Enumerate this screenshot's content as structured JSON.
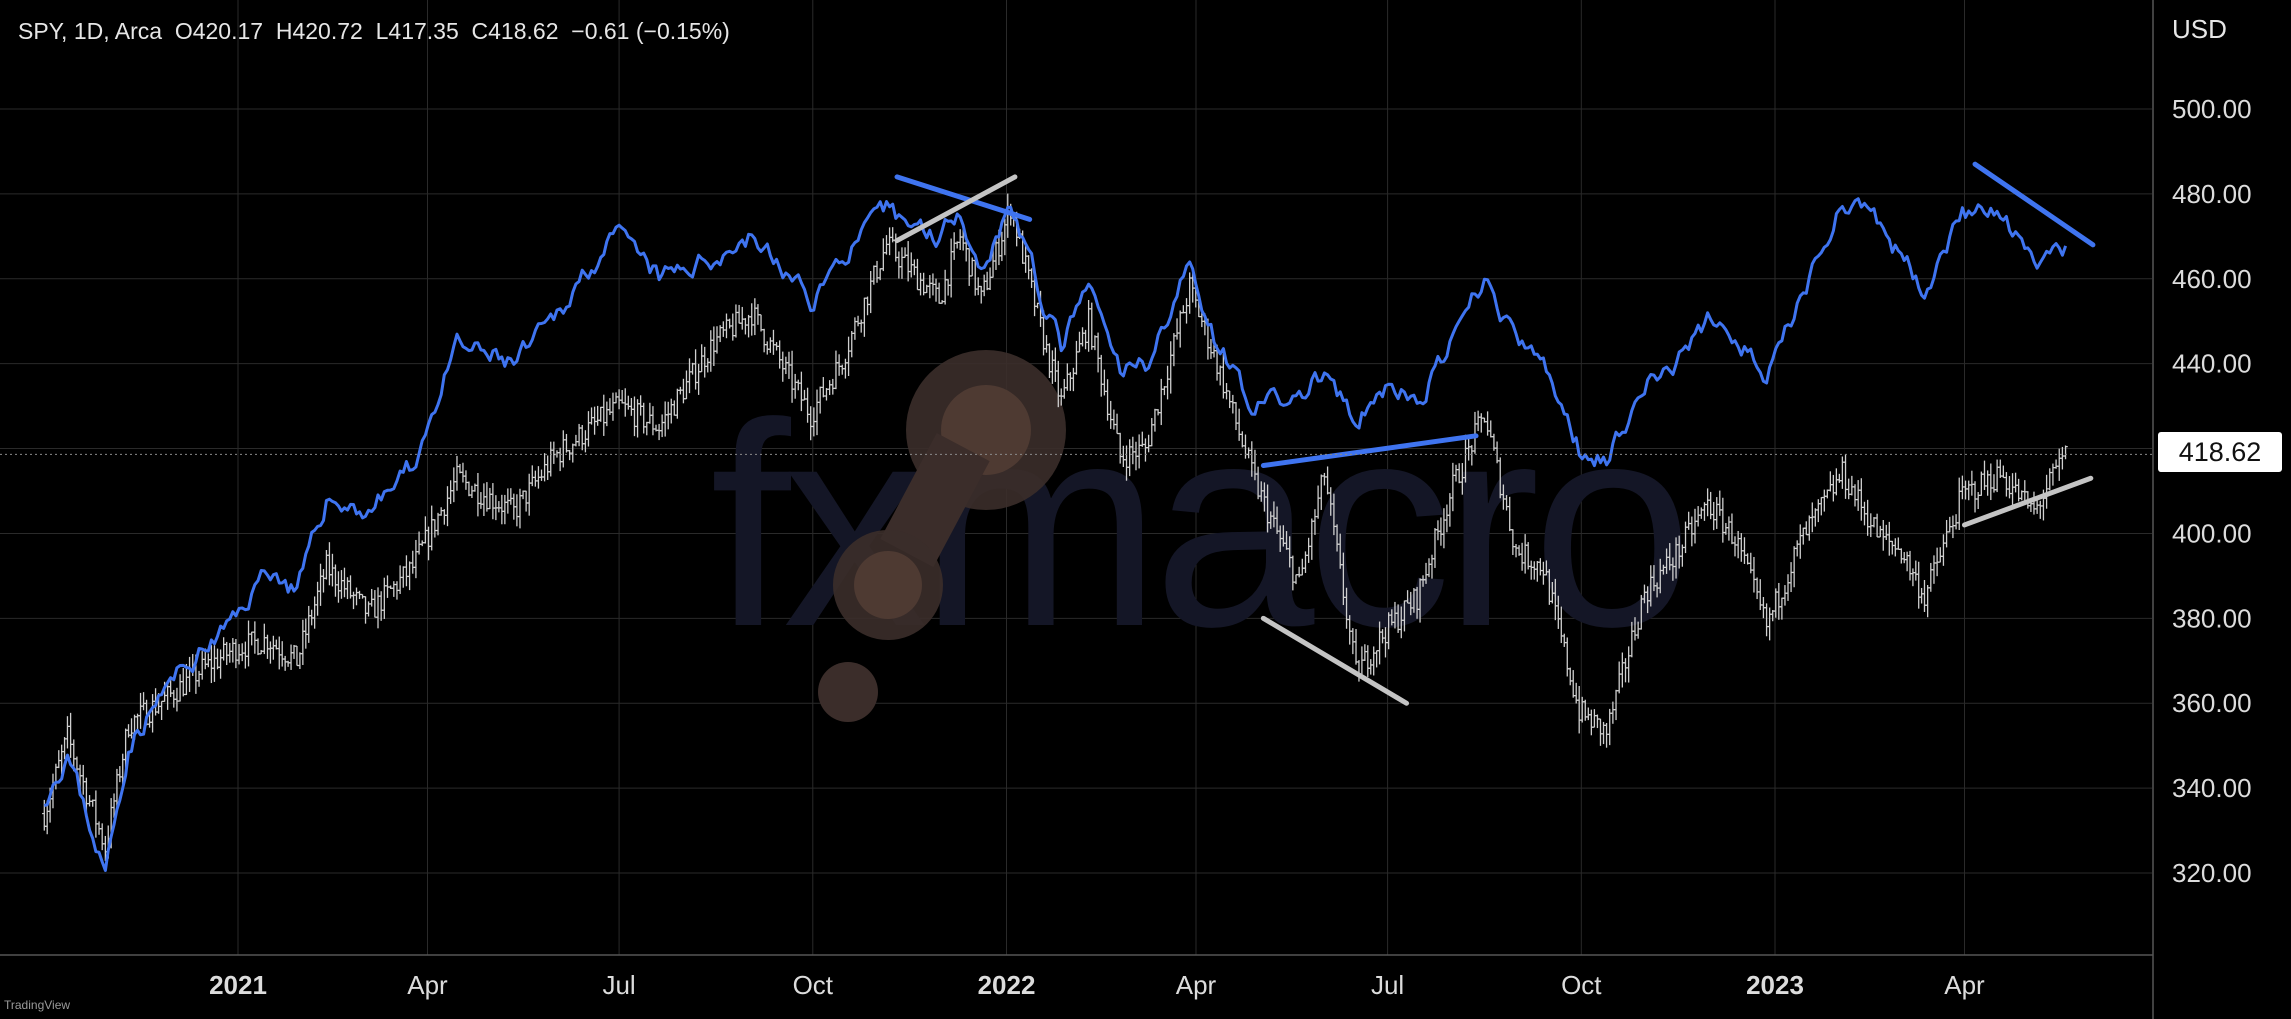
{
  "legend": {
    "symbol": "SPY, 1D, Arca",
    "open": "O420.17",
    "high": "H420.72",
    "low": "L417.35",
    "close": "C418.62",
    "change": "−0.61 (−0.15%)"
  },
  "currency": "USD",
  "last_price_label": "418.62",
  "attribution": "TradingView",
  "watermark": "fxmacro",
  "colors": {
    "background": "#000000",
    "grid": "#2a2a2a",
    "price_bars": "#cfcfcf",
    "comparison_line": "#3f74f0",
    "trendline_blue": "#3f74f0",
    "trendline_gray": "#c4c4c4",
    "watermark_text": "#141626",
    "watermark_logo": "#4a3a34"
  },
  "chart_data": {
    "type": "line",
    "y_axis": {
      "range": [
        300,
        525
      ],
      "ticks": [
        "320.00",
        "340.00",
        "360.00",
        "380.00",
        "400.00",
        "420.00",
        "440.00",
        "460.00",
        "480.00",
        "500.00"
      ]
    },
    "x_axis": {
      "range": [
        "2020-10-01",
        "2023-05-31"
      ],
      "ticks": [
        {
          "label": "2021",
          "date": "2021-01-01",
          "year": true
        },
        {
          "label": "Apr",
          "date": "2021-04-01",
          "year": false
        },
        {
          "label": "Jul",
          "date": "2021-07-01",
          "year": false
        },
        {
          "label": "Oct",
          "date": "2021-10-01",
          "year": false
        },
        {
          "label": "2022",
          "date": "2022-01-01",
          "year": true
        },
        {
          "label": "Apr",
          "date": "2022-04-01",
          "year": false
        },
        {
          "label": "Jul",
          "date": "2022-07-01",
          "year": false
        },
        {
          "label": "Oct",
          "date": "2022-10-01",
          "year": false
        },
        {
          "label": "2023",
          "date": "2023-01-01",
          "year": true
        },
        {
          "label": "Apr",
          "date": "2023-04-01",
          "year": false
        }
      ]
    },
    "grid": true,
    "last_price": 418.62,
    "series": [
      {
        "style": "ohlc-bars",
        "color": "#cfcfcf",
        "points": [
          [
            "2020-10-01",
            334
          ],
          [
            "2020-10-12",
            352
          ],
          [
            "2020-10-30",
            326
          ],
          [
            "2020-11-10",
            355
          ],
          [
            "2020-11-30",
            362
          ],
          [
            "2020-12-15",
            368
          ],
          [
            "2020-12-31",
            373
          ],
          [
            "2021-01-15",
            375
          ],
          [
            "2021-01-29",
            370
          ],
          [
            "2021-02-12",
            392
          ],
          [
            "2021-03-04",
            381
          ],
          [
            "2021-03-25",
            392
          ],
          [
            "2021-04-15",
            413
          ],
          [
            "2021-05-12",
            405
          ],
          [
            "2021-05-31",
            418
          ],
          [
            "2021-06-15",
            424
          ],
          [
            "2021-07-01",
            430
          ],
          [
            "2021-07-20",
            425
          ],
          [
            "2021-08-15",
            445
          ],
          [
            "2021-09-02",
            452
          ],
          [
            "2021-09-30",
            428
          ],
          [
            "2021-10-15",
            441
          ],
          [
            "2021-11-05",
            468
          ],
          [
            "2021-11-30",
            455
          ],
          [
            "2021-12-10",
            470
          ],
          [
            "2021-12-20",
            455
          ],
          [
            "2022-01-03",
            477
          ],
          [
            "2022-01-20",
            443
          ],
          [
            "2022-01-27",
            431
          ],
          [
            "2022-02-09",
            450
          ],
          [
            "2022-02-24",
            418
          ],
          [
            "2022-03-08",
            420
          ],
          [
            "2022-03-29",
            458
          ],
          [
            "2022-04-11",
            440
          ],
          [
            "2022-04-29",
            412
          ],
          [
            "2022-05-20",
            388
          ],
          [
            "2022-06-01",
            414
          ],
          [
            "2022-06-16",
            367
          ],
          [
            "2022-06-30",
            377
          ],
          [
            "2022-07-15",
            385
          ],
          [
            "2022-08-01",
            411
          ],
          [
            "2022-08-16",
            428
          ],
          [
            "2022-08-31",
            396
          ],
          [
            "2022-09-13",
            392
          ],
          [
            "2022-09-30",
            358
          ],
          [
            "2022-10-13",
            353
          ],
          [
            "2022-10-31",
            386
          ],
          [
            "2022-11-15",
            395
          ],
          [
            "2022-11-30",
            407
          ],
          [
            "2022-12-13",
            399
          ],
          [
            "2022-12-28",
            378
          ],
          [
            "2023-01-13",
            398
          ],
          [
            "2023-02-02",
            414
          ],
          [
            "2023-02-20",
            399
          ],
          [
            "2023-03-02",
            396
          ],
          [
            "2023-03-13",
            385
          ],
          [
            "2023-03-31",
            409
          ],
          [
            "2023-04-18",
            414
          ],
          [
            "2023-05-04",
            405
          ],
          [
            "2023-05-19",
            418.62
          ]
        ]
      },
      {
        "style": "line",
        "color": "#3f74f0",
        "points": [
          [
            "2020-10-01",
            338
          ],
          [
            "2020-10-12",
            348
          ],
          [
            "2020-10-30",
            320
          ],
          [
            "2020-11-10",
            350
          ],
          [
            "2020-11-30",
            365
          ],
          [
            "2020-12-15",
            372
          ],
          [
            "2020-12-31",
            380
          ],
          [
            "2021-01-15",
            392
          ],
          [
            "2021-01-29",
            386
          ],
          [
            "2021-02-12",
            408
          ],
          [
            "2021-03-04",
            405
          ],
          [
            "2021-03-25",
            416
          ],
          [
            "2021-04-15",
            444
          ],
          [
            "2021-05-12",
            440
          ],
          [
            "2021-05-31",
            450
          ],
          [
            "2021-06-15",
            462
          ],
          [
            "2021-07-01",
            470
          ],
          [
            "2021-07-20",
            460
          ],
          [
            "2021-08-15",
            465
          ],
          [
            "2021-09-02",
            470
          ],
          [
            "2021-09-30",
            455
          ],
          [
            "2021-10-15",
            465
          ],
          [
            "2021-11-05",
            476
          ],
          [
            "2021-11-30",
            470
          ],
          [
            "2021-12-10",
            477
          ],
          [
            "2021-12-20",
            462
          ],
          [
            "2022-01-03",
            478
          ],
          [
            "2022-01-20",
            452
          ],
          [
            "2022-01-27",
            444
          ],
          [
            "2022-02-09",
            458
          ],
          [
            "2022-02-24",
            438
          ],
          [
            "2022-03-08",
            440
          ],
          [
            "2022-03-29",
            463
          ],
          [
            "2022-04-11",
            445
          ],
          [
            "2022-04-29",
            430
          ],
          [
            "2022-05-20",
            432
          ],
          [
            "2022-06-01",
            438
          ],
          [
            "2022-06-16",
            425
          ],
          [
            "2022-06-30",
            435
          ],
          [
            "2022-07-15",
            430
          ],
          [
            "2022-08-01",
            445
          ],
          [
            "2022-08-16",
            460
          ],
          [
            "2022-08-31",
            445
          ],
          [
            "2022-09-13",
            440
          ],
          [
            "2022-09-30",
            420
          ],
          [
            "2022-10-13",
            418
          ],
          [
            "2022-10-31",
            435
          ],
          [
            "2022-11-15",
            440
          ],
          [
            "2022-11-30",
            450
          ],
          [
            "2022-12-13",
            447
          ],
          [
            "2022-12-28",
            436
          ],
          [
            "2023-01-13",
            455
          ],
          [
            "2023-02-02",
            479
          ],
          [
            "2023-02-20",
            472
          ],
          [
            "2023-03-02",
            465
          ],
          [
            "2023-03-13",
            458
          ],
          [
            "2023-03-31",
            476
          ],
          [
            "2023-04-18",
            475
          ],
          [
            "2023-05-04",
            463
          ],
          [
            "2023-05-19",
            466
          ]
        ]
      }
    ],
    "trendlines": [
      {
        "color": "#3f74f0",
        "from": [
          "2021-11-10",
          484
        ],
        "to": [
          "2022-01-12",
          474
        ]
      },
      {
        "color": "#c4c4c4",
        "from": [
          "2021-11-10",
          469
        ],
        "to": [
          "2022-01-05",
          484
        ]
      },
      {
        "color": "#3f74f0",
        "from": [
          "2022-05-03",
          416
        ],
        "to": [
          "2022-08-12",
          423
        ]
      },
      {
        "color": "#c4c4c4",
        "from": [
          "2022-05-03",
          380
        ],
        "to": [
          "2022-07-10",
          360
        ]
      },
      {
        "color": "#3f74f0",
        "from": [
          "2023-04-06",
          487
        ],
        "to": [
          "2023-06-01",
          468
        ]
      },
      {
        "color": "#c4c4c4",
        "from": [
          "2023-04-01",
          402
        ],
        "to": [
          "2023-05-31",
          413
        ]
      }
    ]
  }
}
